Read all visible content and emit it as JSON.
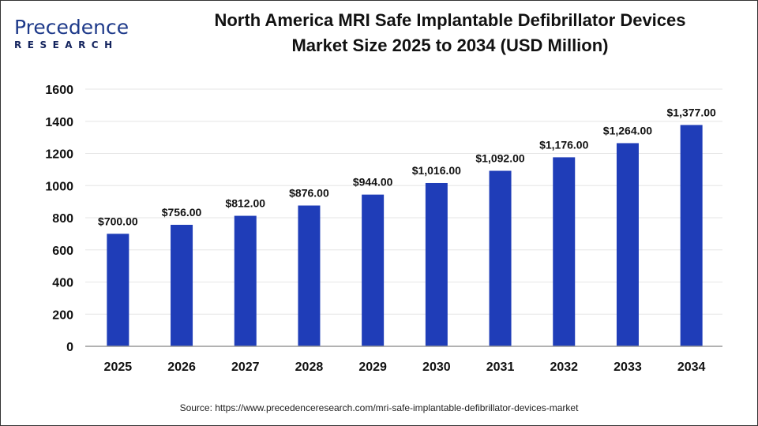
{
  "logo": {
    "text_top": "Precedence",
    "text_bottom": "RESEARCH"
  },
  "chart_data": {
    "type": "bar",
    "title": "North America MRI Safe Implantable Defibrillator Devices Market Size 2025 to 2034 (USD Million)",
    "title_lines": [
      "North America MRI Safe Implantable Defibrillator Devices",
      "Market Size 2025 to 2034 (USD Million)"
    ],
    "categories": [
      "2025",
      "2026",
      "2027",
      "2028",
      "2029",
      "2030",
      "2031",
      "2032",
      "2033",
      "2034"
    ],
    "values": [
      700,
      756,
      812,
      876,
      944,
      1016,
      1092,
      1176,
      1264,
      1377
    ],
    "data_labels": [
      "$700.00",
      "$756.00",
      "$812.00",
      "$876.00",
      "$944.00",
      "$1,016.00",
      "$1,092.00",
      "$1,176.00",
      "$1,264.00",
      "$1,377.00"
    ],
    "xlabel": "",
    "ylabel": "",
    "ylim": [
      0,
      1600
    ],
    "yticks": [
      0,
      200,
      400,
      600,
      800,
      1000,
      1200,
      1400,
      1600
    ],
    "grid": true,
    "bar_color": "#1f3db8"
  },
  "source": "Source: https://www.precedenceresearch.com/mri-safe-implantable-defibrillator-devices-market"
}
